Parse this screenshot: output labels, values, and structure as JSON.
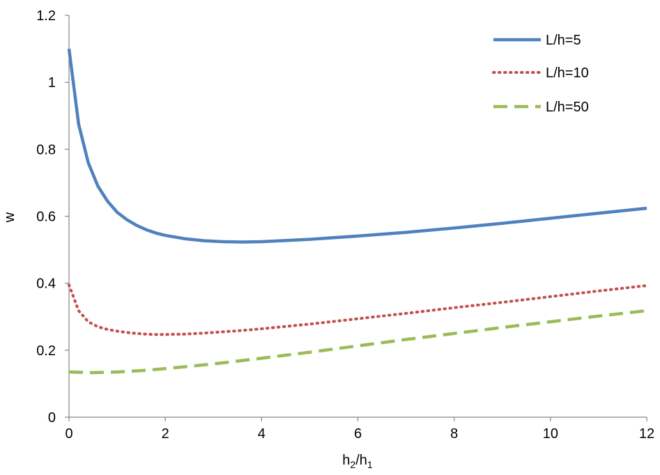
{
  "chart_data": {
    "type": "line",
    "xlabel": {
      "main": "h",
      "sub1": "2",
      "sep": "/h",
      "sub2": "1"
    },
    "ylabel": "w",
    "xlim": [
      0,
      12
    ],
    "ylim": [
      0,
      1.2
    ],
    "x_ticks": [
      0,
      2,
      4,
      6,
      8,
      10,
      12
    ],
    "y_ticks": [
      0,
      0.2,
      0.4,
      0.6,
      0.8,
      1,
      1.2
    ],
    "x_tick_labels": [
      "0",
      "2",
      "4",
      "6",
      "8",
      "10",
      "12"
    ],
    "y_tick_labels": [
      "0",
      "0.2",
      "0.4",
      "0.6",
      "0.8",
      "1",
      "1.2"
    ],
    "grid": false,
    "legend_position": "top-right",
    "series": [
      {
        "name": "L/h=5",
        "color": "#4F81BD",
        "style": "solid",
        "x": [
          0,
          0.2,
          0.4,
          0.6,
          0.8,
          1.0,
          1.2,
          1.4,
          1.6,
          1.8,
          2.0,
          2.4,
          2.8,
          3.2,
          3.6,
          4.0,
          5.0,
          6.0,
          7.0,
          8.0,
          9.0,
          10.0,
          11.0,
          12.0
        ],
        "y": [
          1.1,
          0.875,
          0.76,
          0.69,
          0.645,
          0.612,
          0.59,
          0.573,
          0.56,
          0.55,
          0.543,
          0.533,
          0.527,
          0.524,
          0.523,
          0.524,
          0.531,
          0.541,
          0.552,
          0.565,
          0.579,
          0.594,
          0.609,
          0.624
        ]
      },
      {
        "name": "L/h=10",
        "color": "#C0504D",
        "style": "dotted",
        "x": [
          0,
          0.2,
          0.4,
          0.6,
          0.8,
          1.0,
          1.2,
          1.4,
          1.6,
          1.8,
          2.0,
          2.4,
          2.8,
          3.2,
          3.6,
          4.0,
          5.0,
          6.0,
          7.0,
          8.0,
          9.0,
          10.0,
          11.0,
          12.0
        ],
        "y": [
          0.395,
          0.318,
          0.285,
          0.27,
          0.262,
          0.257,
          0.253,
          0.25,
          0.248,
          0.247,
          0.247,
          0.248,
          0.251,
          0.255,
          0.259,
          0.264,
          0.278,
          0.294,
          0.31,
          0.327,
          0.343,
          0.36,
          0.377,
          0.393
        ]
      },
      {
        "name": "L/h=50",
        "color": "#9BBB59",
        "style": "dashed",
        "x": [
          0,
          0.5,
          1.0,
          1.5,
          2.0,
          3.0,
          4.0,
          5.0,
          6.0,
          7.0,
          8.0,
          9.0,
          10.0,
          11.0,
          12.0
        ],
        "y": [
          0.135,
          0.133,
          0.135,
          0.139,
          0.145,
          0.159,
          0.176,
          0.194,
          0.213,
          0.232,
          0.25,
          0.268,
          0.285,
          0.302,
          0.318
        ]
      }
    ]
  }
}
